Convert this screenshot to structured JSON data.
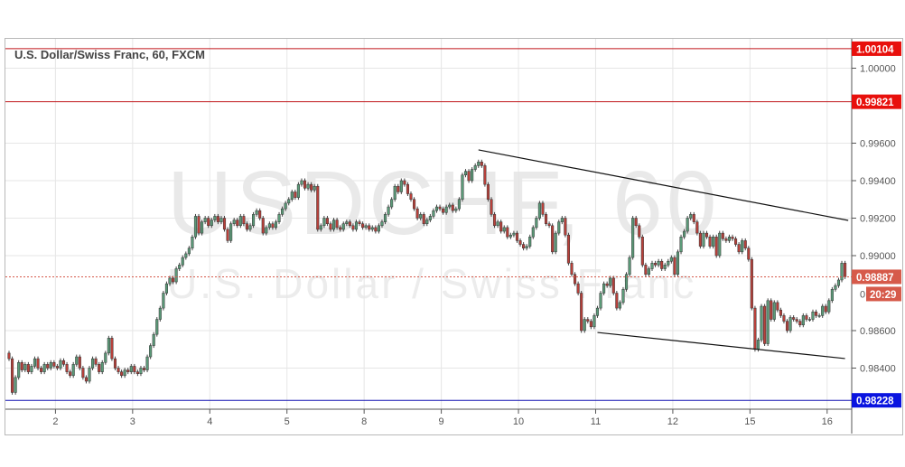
{
  "chart_data": {
    "type": "candlestick",
    "title": "U.S. Dollar/Swiss Franc, 60, FXCM",
    "watermark": {
      "symbol": "USDCHF, 60",
      "name": "U.S. Dollar / Swiss Franc"
    },
    "ylim": [
      0.9816,
      1.0016
    ],
    "y_ticks": [
      "1.00000",
      "0.99600",
      "0.99400",
      "0.99200",
      "0.99000",
      "0.98600",
      "0.98400"
    ],
    "x_ticks": [
      {
        "label": "2",
        "index": 15
      },
      {
        "label": "3",
        "index": 39
      },
      {
        "label": "4",
        "index": 63
      },
      {
        "label": "5",
        "index": 87
      },
      {
        "label": "8",
        "index": 111
      },
      {
        "label": "9",
        "index": 135
      },
      {
        "label": "10",
        "index": 159
      },
      {
        "label": "11",
        "index": 183
      },
      {
        "label": "12",
        "index": 207
      },
      {
        "label": "15",
        "index": 231
      },
      {
        "label": "16",
        "index": 255
      }
    ],
    "grid": true,
    "colors": {
      "up": "#5b9a78",
      "down": "#b8403a",
      "resistance": "#c0161a",
      "support": "#1010b0",
      "current": "#d65a4a"
    },
    "closes": [
      0.9845,
      0.9827,
      0.9835,
      0.9843,
      0.9839,
      0.9842,
      0.9838,
      0.9841,
      0.9845,
      0.984,
      0.9838,
      0.9842,
      0.984,
      0.9843,
      0.9841,
      0.984,
      0.9844,
      0.9842,
      0.9838,
      0.9836,
      0.9842,
      0.9846,
      0.984,
      0.9835,
      0.9833,
      0.984,
      0.9845,
      0.9842,
      0.9838,
      0.9843,
      0.9848,
      0.9856,
      0.9845,
      0.984,
      0.9838,
      0.9836,
      0.9839,
      0.9838,
      0.9841,
      0.9838,
      0.9837,
      0.984,
      0.9839,
      0.9846,
      0.9852,
      0.9858,
      0.9866,
      0.9872,
      0.988,
      0.9885,
      0.9888,
      0.9886,
      0.9893,
      0.9895,
      0.9899,
      0.9901,
      0.9904,
      0.991,
      0.9921,
      0.9912,
      0.9918,
      0.992,
      0.9916,
      0.9919,
      0.9921,
      0.9918,
      0.992,
      0.9914,
      0.9908,
      0.9917,
      0.9919,
      0.9916,
      0.9921,
      0.9917,
      0.9914,
      0.9916,
      0.9922,
      0.9924,
      0.992,
      0.9912,
      0.9915,
      0.9917,
      0.9915,
      0.9918,
      0.9922,
      0.9925,
      0.9928,
      0.993,
      0.9934,
      0.9931,
      0.9938,
      0.994,
      0.9936,
      0.9938,
      0.9935,
      0.9937,
      0.9914,
      0.9916,
      0.992,
      0.9917,
      0.9914,
      0.9919,
      0.9915,
      0.9914,
      0.9917,
      0.9918,
      0.9916,
      0.9914,
      0.9918,
      0.9917,
      0.9915,
      0.9916,
      0.9914,
      0.9915,
      0.9913,
      0.9916,
      0.9918,
      0.9922,
      0.9926,
      0.993,
      0.9937,
      0.9934,
      0.994,
      0.9938,
      0.9933,
      0.993,
      0.9925,
      0.992,
      0.9922,
      0.9917,
      0.9919,
      0.9921,
      0.9924,
      0.9926,
      0.9925,
      0.9923,
      0.9926,
      0.9927,
      0.9924,
      0.9925,
      0.993,
      0.9943,
      0.9945,
      0.994,
      0.9946,
      0.9948,
      0.995,
      0.9948,
      0.9938,
      0.993,
      0.9922,
      0.9916,
      0.9918,
      0.9913,
      0.9915,
      0.991,
      0.9911,
      0.9912,
      0.9908,
      0.9906,
      0.9904,
      0.9905,
      0.991,
      0.9915,
      0.992,
      0.9928,
      0.9922,
      0.9917,
      0.9916,
      0.9902,
      0.9912,
      0.9918,
      0.992,
      0.9911,
      0.9896,
      0.989,
      0.9885,
      0.988,
      0.986,
      0.9866,
      0.9865,
      0.9862,
      0.9868,
      0.9872,
      0.988,
      0.9885,
      0.9884,
      0.9888,
      0.988,
      0.9872,
      0.9875,
      0.9882,
      0.989,
      0.9899,
      0.992,
      0.9916,
      0.991,
      0.9895,
      0.989,
      0.9893,
      0.9896,
      0.9895,
      0.9897,
      0.9893,
      0.9895,
      0.9897,
      0.9899,
      0.989,
      0.9902,
      0.991,
      0.9913,
      0.992,
      0.9922,
      0.9918,
      0.9912,
      0.9905,
      0.9912,
      0.991,
      0.9905,
      0.991,
      0.99,
      0.9912,
      0.9909,
      0.9908,
      0.991,
      0.9909,
      0.9906,
      0.9902,
      0.9908,
      0.9904,
      0.9898,
      0.9872,
      0.985,
      0.9855,
      0.9873,
      0.9853,
      0.9876,
      0.9866,
      0.9875,
      0.9871,
      0.9868,
      0.9865,
      0.986,
      0.9867,
      0.9866,
      0.9865,
      0.9863,
      0.9868,
      0.9866,
      0.9866,
      0.987,
      0.9868,
      0.9868,
      0.9873,
      0.987,
      0.9876,
      0.9882,
      0.9884,
      0.9887,
      0.9896,
      0.98887
    ],
    "horizontal_lines": [
      {
        "price": 1.00104,
        "label": "1.00104",
        "color": "#c0161a"
      },
      {
        "price": 0.99821,
        "label": "0.99821",
        "color": "#c0161a"
      },
      {
        "price": 0.98228,
        "label": "0.98228",
        "color": "#1010b0"
      }
    ],
    "trendlines": [
      {
        "from": {
          "index": 146,
          "price": 0.99564
        },
        "to": {
          "index": 261,
          "price": 0.99188
        }
      },
      {
        "from": {
          "index": 183,
          "price": 0.9859
        },
        "to": {
          "index": 260,
          "price": 0.98451
        }
      }
    ],
    "current_price": {
      "label": "0.98887",
      "value": 0.98887,
      "countdown": "20:29"
    }
  }
}
